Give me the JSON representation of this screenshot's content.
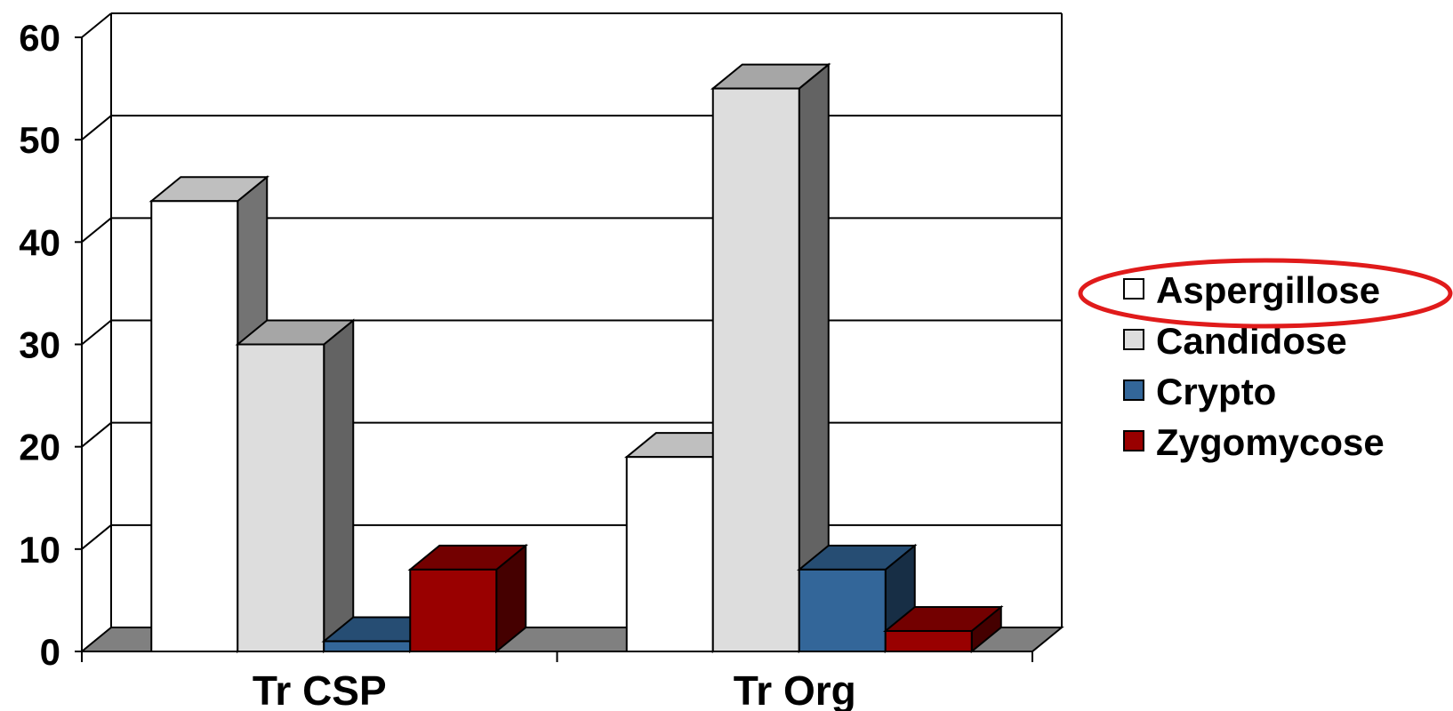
{
  "chart_data": {
    "type": "bar",
    "title": "",
    "xlabel": "",
    "ylabel": "",
    "categories": [
      "Tr CSP",
      "Tr Org"
    ],
    "series": [
      {
        "name": "Aspergillose",
        "values": [
          44,
          19
        ],
        "color": "#ffffff"
      },
      {
        "name": "Candidose",
        "values": [
          30,
          55
        ],
        "color": "#dddddd"
      },
      {
        "name": "Crypto",
        "values": [
          1,
          8
        ],
        "color": "#336699"
      },
      {
        "name": "Zygomycose",
        "values": [
          8,
          2
        ],
        "color": "#990000"
      }
    ],
    "ylim": [
      0,
      60
    ],
    "yticks": [
      "0",
      "10",
      "20",
      "30",
      "40",
      "50",
      "60"
    ],
    "grid": true,
    "style_3d": true,
    "legend_position": "right",
    "highlighted_legend_item": "Aspergillose",
    "highlight_color": "#e01b1b"
  }
}
